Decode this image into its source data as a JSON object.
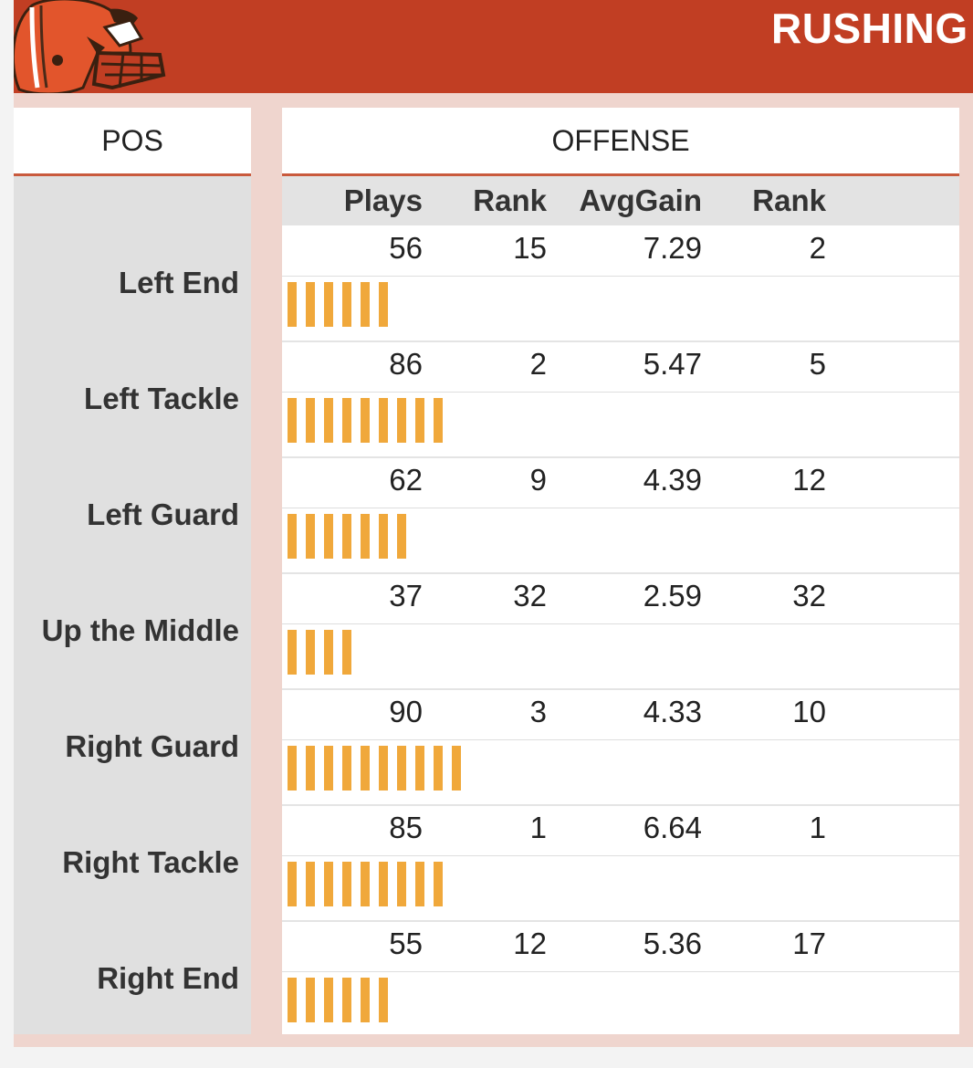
{
  "header": {
    "title": "RUSHING"
  },
  "table": {
    "pos_header": "POS",
    "offense_header": "OFFENSE",
    "columns": [
      "Plays",
      "Rank",
      "AvgGain",
      "Rank"
    ]
  },
  "colors": {
    "header_bg": "#c13e23",
    "bar": "#f0a83b",
    "frame": "#efd5ce",
    "pos_bg": "#e0e0e0"
  },
  "icons": {
    "logo": "browns-helmet-icon"
  },
  "chart_data": {
    "type": "table",
    "title": "RUSHING",
    "categories": [
      "Left End",
      "Left Tackle",
      "Left Guard",
      "Up the Middle",
      "Right Guard",
      "Right Tackle",
      "Right End"
    ],
    "rows": [
      {
        "pos": "Left End",
        "plays": "56",
        "plays_rank": "15",
        "avg_gain": "7.29",
        "avg_rank": "2",
        "bar_count": 6
      },
      {
        "pos": "Left Tackle",
        "plays": "86",
        "plays_rank": "2",
        "avg_gain": "5.47",
        "avg_rank": "5",
        "bar_count": 9
      },
      {
        "pos": "Left Guard",
        "plays": "62",
        "plays_rank": "9",
        "avg_gain": "4.39",
        "avg_rank": "12",
        "bar_count": 7
      },
      {
        "pos": "Up the Middle",
        "plays": "37",
        "plays_rank": "32",
        "avg_gain": "2.59",
        "avg_rank": "32",
        "bar_count": 4
      },
      {
        "pos": "Right Guard",
        "plays": "90",
        "plays_rank": "3",
        "avg_gain": "4.33",
        "avg_rank": "10",
        "bar_count": 10
      },
      {
        "pos": "Right Tackle",
        "plays": "85",
        "plays_rank": "1",
        "avg_gain": "6.64",
        "avg_rank": "1",
        "bar_count": 9
      },
      {
        "pos": "Right End",
        "plays": "55",
        "plays_rank": "12",
        "avg_gain": "5.36",
        "avg_rank": "17",
        "bar_count": 6
      }
    ]
  }
}
